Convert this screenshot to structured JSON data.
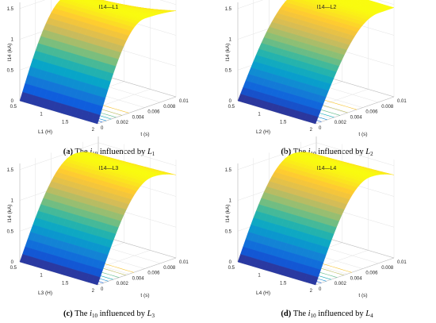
{
  "figure": {
    "panels": [
      {
        "title": "I14—L1",
        "zlabel": "I14 (kA)",
        "ylabel": "L1 (H)",
        "xlabel": "t (s)",
        "caption": {
          "letter": "(a)",
          "prefix": "The",
          "sym": "i",
          "sym_sub": "10",
          "mid": "influenced by",
          "var": "L",
          "var_sub": "1"
        }
      },
      {
        "title": "I14—L2",
        "zlabel": "I14 (kA)",
        "ylabel": "L2 (H)",
        "xlabel": "t (s)",
        "caption": {
          "letter": "(b)",
          "prefix": "The",
          "sym": "i",
          "sym_sub": "10",
          "mid": "influenced by",
          "var": "L",
          "var_sub": "2"
        }
      },
      {
        "title": "I14—L3",
        "zlabel": "I14 (kA)",
        "ylabel": "L3 (H)",
        "xlabel": "t (s)",
        "caption": {
          "letter": "(c)",
          "prefix": "The",
          "sym": "i",
          "sym_sub": "10",
          "mid": "influenced by",
          "var": "L",
          "var_sub": "3"
        }
      },
      {
        "title": "I14—L4",
        "zlabel": "I14 (kA)",
        "ylabel": "L4 (H)",
        "xlabel": "t (s)",
        "caption": {
          "letter": "(d)",
          "prefix": "The",
          "sym": "i",
          "sym_sub": "10",
          "mid": "influenced by",
          "var": "L",
          "var_sub": "4"
        }
      }
    ]
  },
  "chart_data": [
    {
      "type": "surface",
      "z_ticks": [
        "0",
        "0.5",
        "1",
        "1.5"
      ],
      "y_ticks": [
        "0.5",
        "1",
        "1.5",
        "2"
      ],
      "x_ticks": [
        "0",
        "0.002",
        "0.004",
        "0.006",
        "0.008",
        "0.01"
      ],
      "xlim": [
        0,
        0.01
      ],
      "ylim": [
        0.5,
        2
      ],
      "zlim": [
        0,
        1.6
      ],
      "surface": {
        "peak_kA": 1.45,
        "end_kA_at_L_min": 1.1,
        "end_kA_at_L_max": 1.4,
        "rise_time_s": 0.006
      },
      "contour_levels": 6,
      "colormap": [
        "#352a87",
        "#0f5cdd",
        "#1481d6",
        "#06a4ca",
        "#2eb7a4",
        "#87bf77",
        "#d1bb59",
        "#fec832",
        "#f9fb0e"
      ],
      "grid": true
    },
    {
      "type": "surface",
      "z_ticks": [
        "0",
        "0.5",
        "1",
        "1.5"
      ],
      "y_ticks": [
        "0.5",
        "1",
        "1.5",
        "2"
      ],
      "x_ticks": [
        "0",
        "0.002",
        "0.004",
        "0.006",
        "0.008",
        "0.01"
      ],
      "xlim": [
        0,
        0.01
      ],
      "ylim": [
        0.5,
        2
      ],
      "zlim": [
        0,
        1.6
      ],
      "surface": {
        "peak_kA": 1.45,
        "end_kA_at_L_min": 1.45,
        "end_kA_at_L_max": 1.45,
        "rise_time_s": 0.008
      },
      "contour_levels": 6,
      "colormap": [
        "#352a87",
        "#0f5cdd",
        "#1481d6",
        "#06a4ca",
        "#2eb7a4",
        "#87bf77",
        "#d1bb59",
        "#fec832",
        "#f9fb0e"
      ],
      "grid": true
    },
    {
      "type": "surface",
      "z_ticks": [
        "0",
        "0.5",
        "1",
        "1.5"
      ],
      "y_ticks": [
        "0.5",
        "1",
        "1.5",
        "2"
      ],
      "x_ticks": [
        "0",
        "0.002",
        "0.004",
        "0.006",
        "0.008",
        "0.01"
      ],
      "xlim": [
        0,
        0.01
      ],
      "ylim": [
        0.5,
        2
      ],
      "zlim": [
        0,
        1.6
      ],
      "surface": {
        "peak_kA": 1.45,
        "end_kA_at_L_min": 1.3,
        "end_kA_at_L_max": 1.35,
        "rise_time_s": 0.007
      },
      "contour_levels": 6,
      "colormap": [
        "#352a87",
        "#0f5cdd",
        "#1481d6",
        "#06a4ca",
        "#2eb7a4",
        "#87bf77",
        "#d1bb59",
        "#fec832",
        "#f9fb0e"
      ],
      "grid": true
    },
    {
      "type": "surface",
      "z_ticks": [
        "0",
        "0.5",
        "1",
        "1.5"
      ],
      "y_ticks": [
        "0.5",
        "1",
        "1.5",
        "2"
      ],
      "x_ticks": [
        "0",
        "0.002",
        "0.004",
        "0.006",
        "0.008",
        "0.01"
      ],
      "xlim": [
        0,
        0.01
      ],
      "ylim": [
        0.5,
        2
      ],
      "zlim": [
        0,
        1.6
      ],
      "surface": {
        "peak_kA": 1.45,
        "end_kA_at_L_min": 1.3,
        "end_kA_at_L_max": 1.35,
        "rise_time_s": 0.007
      },
      "contour_levels": 6,
      "colormap": [
        "#352a87",
        "#0f5cdd",
        "#1481d6",
        "#06a4ca",
        "#2eb7a4",
        "#87bf77",
        "#d1bb59",
        "#fec832",
        "#f9fb0e"
      ],
      "grid": true
    }
  ]
}
